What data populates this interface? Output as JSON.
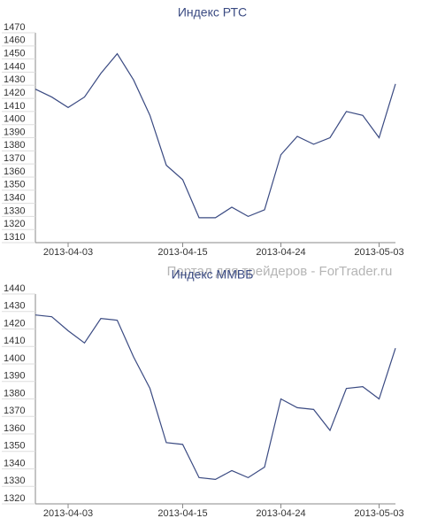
{
  "watermark": "Портал для трейдеров - ForTrader.ru",
  "chart_data": [
    {
      "type": "line",
      "title": "Индекс РТС",
      "categories": [
        null,
        null,
        "2013-04-03",
        null,
        null,
        null,
        null,
        null,
        null,
        "2013-04-15",
        null,
        null,
        null,
        null,
        null,
        "2013-04-24",
        null,
        null,
        null,
        null,
        null,
        "2013-05-03",
        null
      ],
      "series": [
        {
          "name": "Индекс РТС",
          "color": "#3a4a82",
          "values": [
            1427,
            1421,
            1413,
            1421,
            1439,
            1454,
            1434,
            1407,
            1369,
            1358,
            1329,
            1329,
            1337,
            1330,
            1335,
            1377,
            1391,
            1385,
            1390,
            1410,
            1407,
            1390,
            1431
          ]
        }
      ],
      "ylim": [
        1310,
        1470
      ],
      "yticks": [
        1310,
        1320,
        1330,
        1340,
        1350,
        1360,
        1370,
        1380,
        1390,
        1400,
        1410,
        1420,
        1430,
        1440,
        1450,
        1460,
        1470
      ]
    },
    {
      "type": "line",
      "title": "Индекс ММВБ",
      "categories": [
        null,
        null,
        "2013-04-03",
        null,
        null,
        null,
        null,
        null,
        null,
        "2013-04-15",
        null,
        null,
        null,
        null,
        null,
        "2013-04-24",
        null,
        null,
        null,
        null,
        null,
        "2013-05-03",
        null
      ],
      "series": [
        {
          "name": "Индекс ММВБ",
          "color": "#3a4a82",
          "values": [
            1428,
            1427,
            1419,
            1412,
            1426,
            1425,
            1404,
            1386,
            1355,
            1354,
            1335,
            1334,
            1339,
            1335,
            1341,
            1380,
            1375,
            1374,
            1362,
            1386,
            1387,
            1380,
            1409
          ]
        }
      ],
      "ylim": [
        1320,
        1440
      ],
      "yticks": [
        1320,
        1330,
        1340,
        1350,
        1360,
        1370,
        1380,
        1390,
        1400,
        1410,
        1420,
        1430,
        1440
      ]
    }
  ]
}
